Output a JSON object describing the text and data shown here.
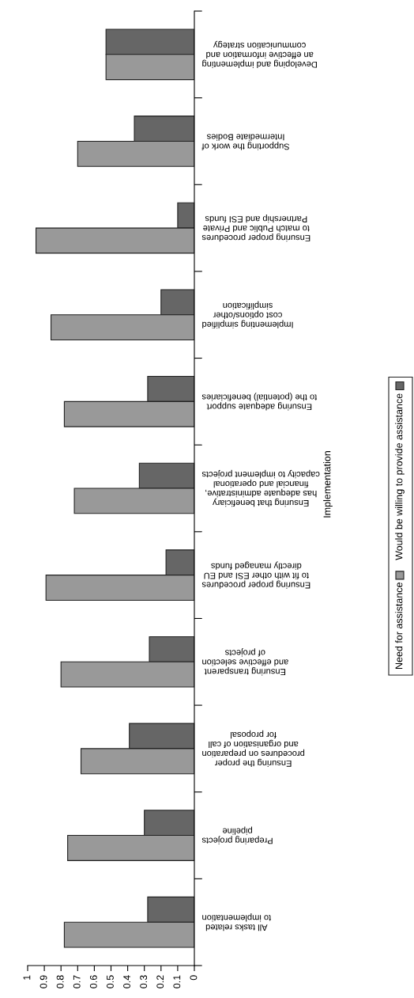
{
  "chart_data": {
    "type": "bar",
    "orientation": "horizontal",
    "title": "Implementation",
    "categories": [
      "Developing and implementing\nan effective information and\ncommunication strategy",
      "Supporting the work of\nIntermediate Bodies",
      "Ensuring proper procedures\nto match Public and Private\nPartnership and ESI funds",
      "Implementing simplified\ncost options/other\nsimplification",
      "Ensuring adequate support\nto the (potential) beneficiaries",
      "Ensuring that beneficiary\nhas adequate administrative,\nfinancial and operational\ncapacity to implement projects",
      "Ensuring proper procedures\nto fit with other ESI and EU\ndirectly managed funds",
      "Ensuring transparent\nand effective selection\nof projects",
      "Ensuring the proper\nprocedures on preparation\nand organisation of call\nfor proposal",
      "Preparing projects\npipeline",
      "All tasks related\nto implementation"
    ],
    "series": [
      {
        "name": "Would be willing to provide assistance",
        "color": "#666666",
        "values": [
          0.53,
          0.36,
          0.1,
          0.2,
          0.28,
          0.33,
          0.17,
          0.27,
          0.39,
          0.3,
          0.28
        ]
      },
      {
        "name": "Need for assistance",
        "color": "#999999",
        "values": [
          0.53,
          0.7,
          0.95,
          0.86,
          0.78,
          0.72,
          0.89,
          0.8,
          0.68,
          0.76,
          0.78
        ]
      }
    ],
    "xlim": [
      1,
      0
    ],
    "xticks": [
      0,
      0.1,
      0.2,
      0.3,
      0.4,
      0.5,
      0.6,
      0.7,
      0.8,
      0.9,
      1
    ],
    "grid": false,
    "legend": "bottom right"
  }
}
